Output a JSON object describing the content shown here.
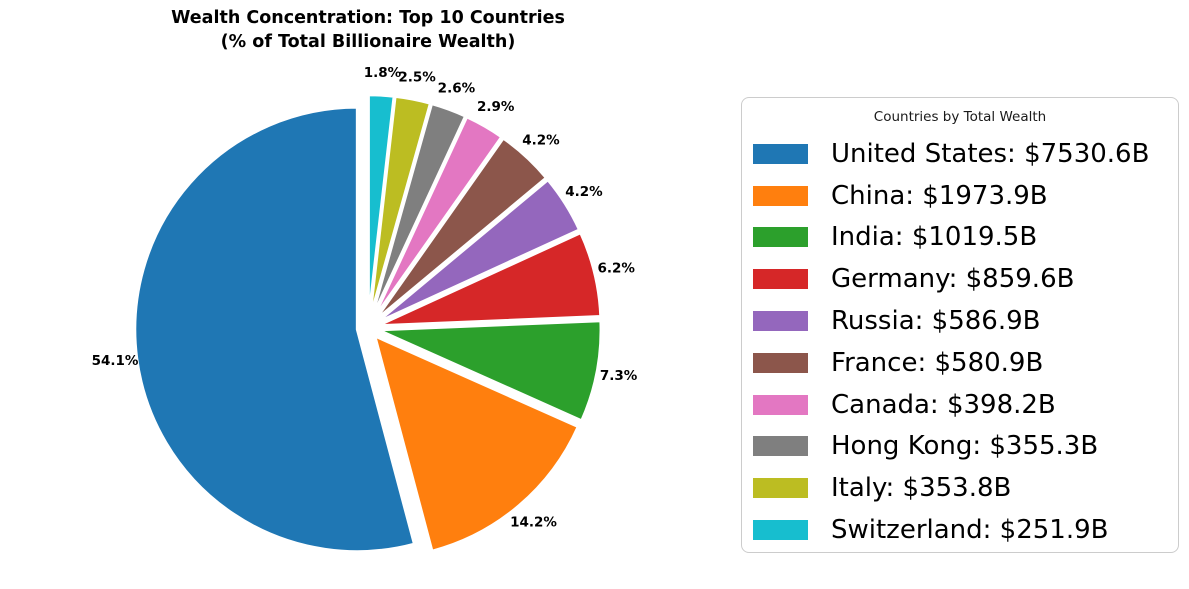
{
  "chart_data": {
    "type": "pie",
    "title": "Wealth Concentration: Top 10 Countries",
    "subtitle": "(% of Total Billionaire Wealth)",
    "legend_title": "Countries by Total Wealth",
    "legend_position": "right",
    "start_angle": 90,
    "direction": "counterclockwise",
    "wedge_edge_color": "#ffffff",
    "background_color": "#ffffff",
    "legend_border_color": "#cccccc",
    "slices": [
      {
        "label": "United States",
        "value": 7530.6,
        "pct_label": "54.1%",
        "legend_label": "United States: $7530.6B",
        "color": "#1f77b4"
      },
      {
        "label": "China",
        "value": 1973.9,
        "pct_label": "14.2%",
        "legend_label": "China: $1973.9B",
        "color": "#ff7f0e"
      },
      {
        "label": "India",
        "value": 1019.5,
        "pct_label": "7.3%",
        "legend_label": "India: $1019.5B",
        "color": "#2ca02c"
      },
      {
        "label": "Germany",
        "value": 859.6,
        "pct_label": "6.2%",
        "legend_label": "Germany: $859.6B",
        "color": "#d62728"
      },
      {
        "label": "Russia",
        "value": 586.9,
        "pct_label": "4.2%",
        "legend_label": "Russia: $586.9B",
        "color": "#9467bd"
      },
      {
        "label": "France",
        "value": 580.9,
        "pct_label": "4.2%",
        "legend_label": "France: $580.9B",
        "color": "#8c564b"
      },
      {
        "label": "Canada",
        "value": 398.2,
        "pct_label": "2.9%",
        "legend_label": "Canada: $398.2B",
        "color": "#e377c2"
      },
      {
        "label": "Hong Kong",
        "value": 355.3,
        "pct_label": "2.6%",
        "legend_label": "Hong Kong: $355.3B",
        "color": "#7f7f7f"
      },
      {
        "label": "Italy",
        "value": 353.8,
        "pct_label": "2.5%",
        "legend_label": "Italy: $353.8B",
        "color": "#bcbd22"
      },
      {
        "label": "Switzerland",
        "value": 251.9,
        "pct_label": "1.8%",
        "legend_label": "Switzerland: $251.9B",
        "color": "#17becf"
      }
    ]
  }
}
